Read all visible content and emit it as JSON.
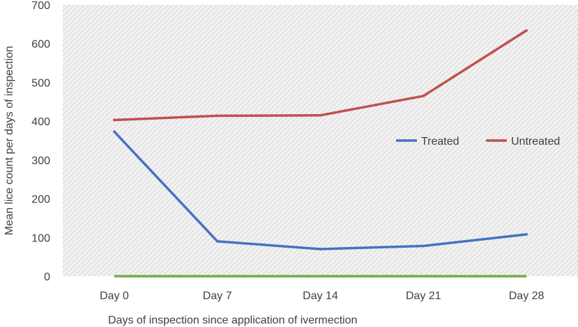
{
  "chart_data": {
    "type": "line",
    "categories": [
      "Day 0",
      "Day 7",
      "Day 14",
      "Day 21",
      "Day 28"
    ],
    "series": [
      {
        "name": "Treated",
        "values": [
          373,
          90,
          70,
          78,
          108
        ],
        "color": "#4472C4"
      },
      {
        "name": "Untreated",
        "values": [
          403,
          414,
          415,
          465,
          634
        ],
        "color": "#C0504D"
      }
    ],
    "baseline": {
      "values": [
        0,
        0,
        0,
        0,
        0
      ],
      "color": "#70AD47"
    },
    "title": "",
    "xlabel": "Days of inspection since application of ivermection",
    "ylabel": "Mean lice count per days of inspection",
    "ylim": [
      0,
      700
    ],
    "yticks": [
      0,
      100,
      200,
      300,
      400,
      500,
      600,
      700
    ],
    "grid": false,
    "background": "hatched-gray",
    "legend_position": "right"
  }
}
